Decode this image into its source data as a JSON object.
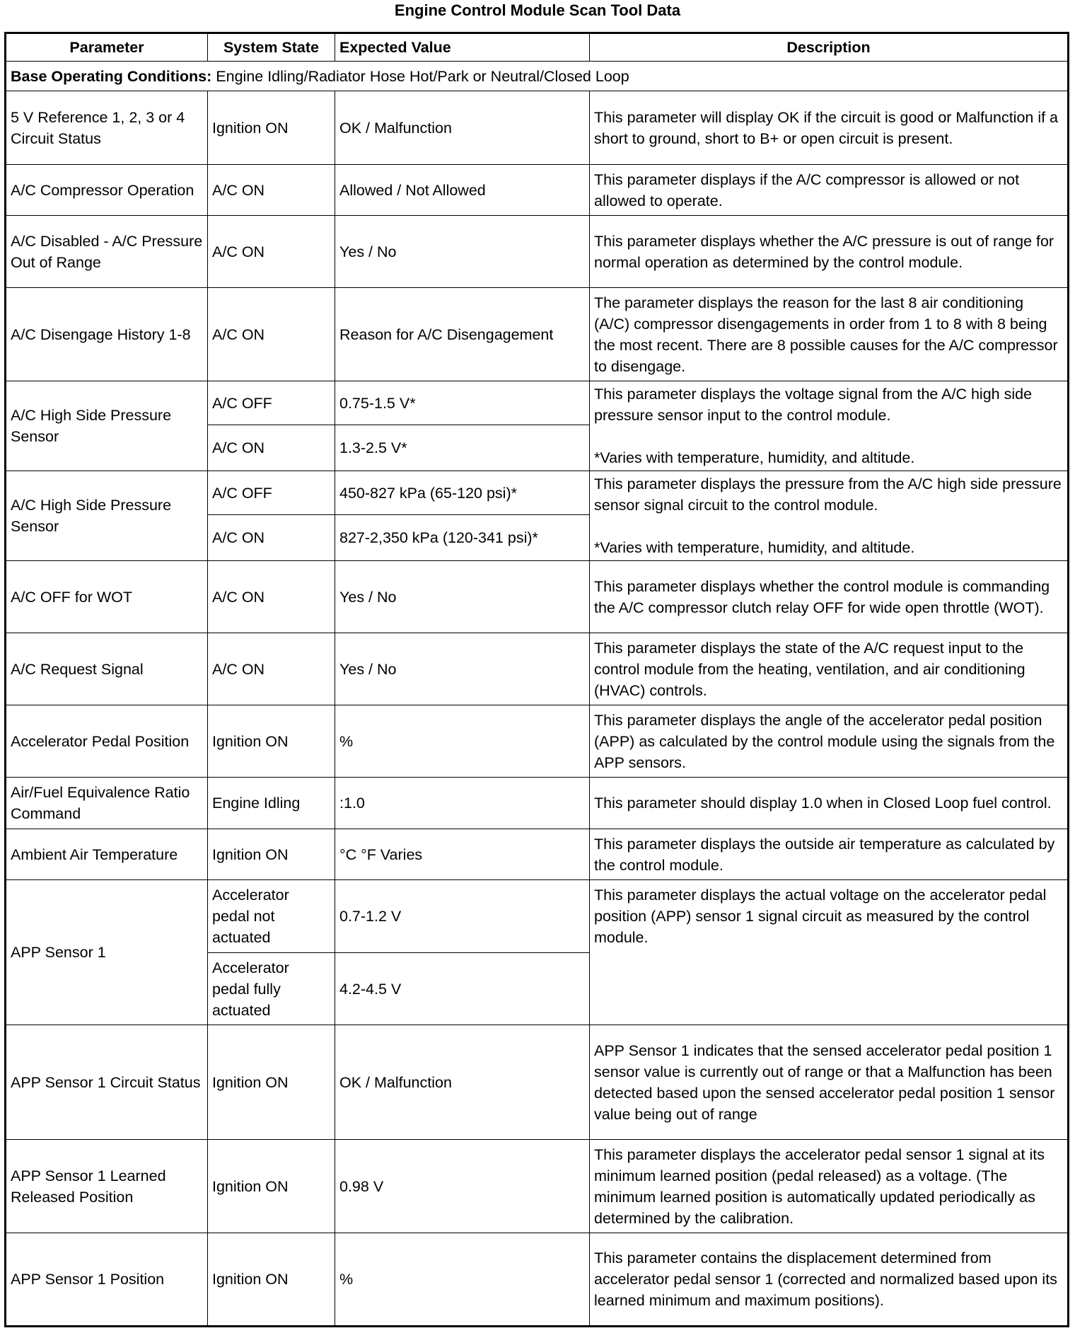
{
  "title": "Engine Control Module Scan Tool Data",
  "columns": [
    "Parameter",
    "System State",
    "Expected Value",
    "Description"
  ],
  "base_conditions": {
    "label": "Base Operating Conditions:",
    "text": " Engine Idling/Radiator Hose Hot/Park or Neutral/Closed Loop"
  },
  "rows": [
    {
      "parameter": "5 V Reference 1, 2, 3 or 4 Circuit Status",
      "states": [
        {
          "state": "Ignition ON",
          "value": "OK / Malfunction"
        }
      ],
      "description": "This parameter will display OK if the circuit is good or Malfunction if a short to ground, short to B+ or open circuit is present."
    },
    {
      "parameter": "A/C Compressor Operation",
      "states": [
        {
          "state": "A/C ON",
          "value": "Allowed / Not Allowed"
        }
      ],
      "description": "This parameter displays if the A/C compressor is allowed or not allowed to operate."
    },
    {
      "parameter": "A/C Disabled - A/C Pressure Out of Range",
      "states": [
        {
          "state": "A/C ON",
          "value": "Yes / No"
        }
      ],
      "description": "This parameter displays whether the A/C pressure is out of range for normal operation as determined by the control module."
    },
    {
      "parameter": "A/C Disengage History 1-8",
      "states": [
        {
          "state": "A/C ON",
          "value": "Reason for A/C Disengagement"
        }
      ],
      "description": "The parameter displays the reason for the last 8 air conditioning (A/C) compressor disengagements in order from 1 to 8 with 8 being the most recent. There are 8 possible causes for the A/C compressor to disengage."
    },
    {
      "parameter": "A/C High Side Pressure Sensor",
      "states": [
        {
          "state": "A/C OFF",
          "value": "0.75-1.5 V*"
        },
        {
          "state": "A/C ON",
          "value": "1.3-2.5 V*"
        }
      ],
      "description": "This parameter displays the voltage signal from the A/C high side pressure sensor input to the control module.\n\n*Varies with temperature, humidity, and altitude."
    },
    {
      "parameter": "A/C High Side Pressure Sensor",
      "states": [
        {
          "state": "A/C OFF",
          "value": "450-827 kPa (65-120 psi)*"
        },
        {
          "state": "A/C ON",
          "value": "827-2,350 kPa (120-341 psi)*"
        }
      ],
      "description": "This parameter displays the pressure from the A/C high side pressure sensor signal circuit to the control module.\n\n*Varies with temperature, humidity, and altitude."
    },
    {
      "parameter": "A/C OFF for WOT",
      "states": [
        {
          "state": "A/C ON",
          "value": "Yes / No"
        }
      ],
      "description": "This parameter displays whether the control module is commanding the A/C compressor clutch relay OFF for wide open throttle (WOT)."
    },
    {
      "parameter": "A/C Request Signal",
      "states": [
        {
          "state": "A/C ON",
          "value": "Yes / No"
        }
      ],
      "description": "This parameter displays the state of the A/C request input to the control module from the heating, ventilation, and air conditioning (HVAC) controls."
    },
    {
      "parameter": "Accelerator Pedal Position",
      "states": [
        {
          "state": "Ignition ON",
          "value": "%"
        }
      ],
      "description": "This parameter displays the angle of the accelerator pedal position (APP) as calculated by the control module using the signals from the APP sensors."
    },
    {
      "parameter": "Air/Fuel Equivalence Ratio Command",
      "states": [
        {
          "state": "Engine Idling",
          "value": ":1.0"
        }
      ],
      "description": "This parameter should display 1.0 when in Closed Loop fuel control."
    },
    {
      "parameter": "Ambient Air Temperature",
      "states": [
        {
          "state": "Ignition ON",
          "value": "°C °F Varies"
        }
      ],
      "description": "This parameter displays the outside air temperature as calculated by the control module."
    },
    {
      "parameter": "APP Sensor 1",
      "states": [
        {
          "state": "Accelerator pedal not actuated",
          "value": "0.7-1.2 V"
        },
        {
          "state": "Accelerator pedal fully actuated",
          "value": "4.2-4.5 V"
        }
      ],
      "description": "This parameter displays the actual voltage on the accelerator pedal position (APP) sensor 1 signal circuit as measured by the control module.",
      "desc_top": true
    },
    {
      "parameter": "APP Sensor 1 Circuit Status",
      "states": [
        {
          "state": "Ignition ON",
          "value": "OK / Malfunction"
        }
      ],
      "description": "APP Sensor 1 indicates that the sensed accelerator pedal position 1 sensor value is currently out of range or that a Malfunction has been detected based upon the sensed accelerator pedal position 1 sensor value being out of range"
    },
    {
      "parameter": "APP Sensor 1 Learned Released Position",
      "states": [
        {
          "state": "Ignition ON",
          "value": "0.98 V"
        }
      ],
      "description": "This parameter displays the accelerator pedal sensor 1 signal at its minimum learned position (pedal released) as a voltage. (The minimum learned position is automatically updated periodically as determined by the calibration."
    },
    {
      "parameter": "APP Sensor 1 Position",
      "states": [
        {
          "state": "Ignition ON",
          "value": "%"
        }
      ],
      "description": "This parameter contains the displacement determined from accelerator pedal sensor 1 (corrected and normalized based upon its learned minimum and maximum positions)."
    }
  ]
}
